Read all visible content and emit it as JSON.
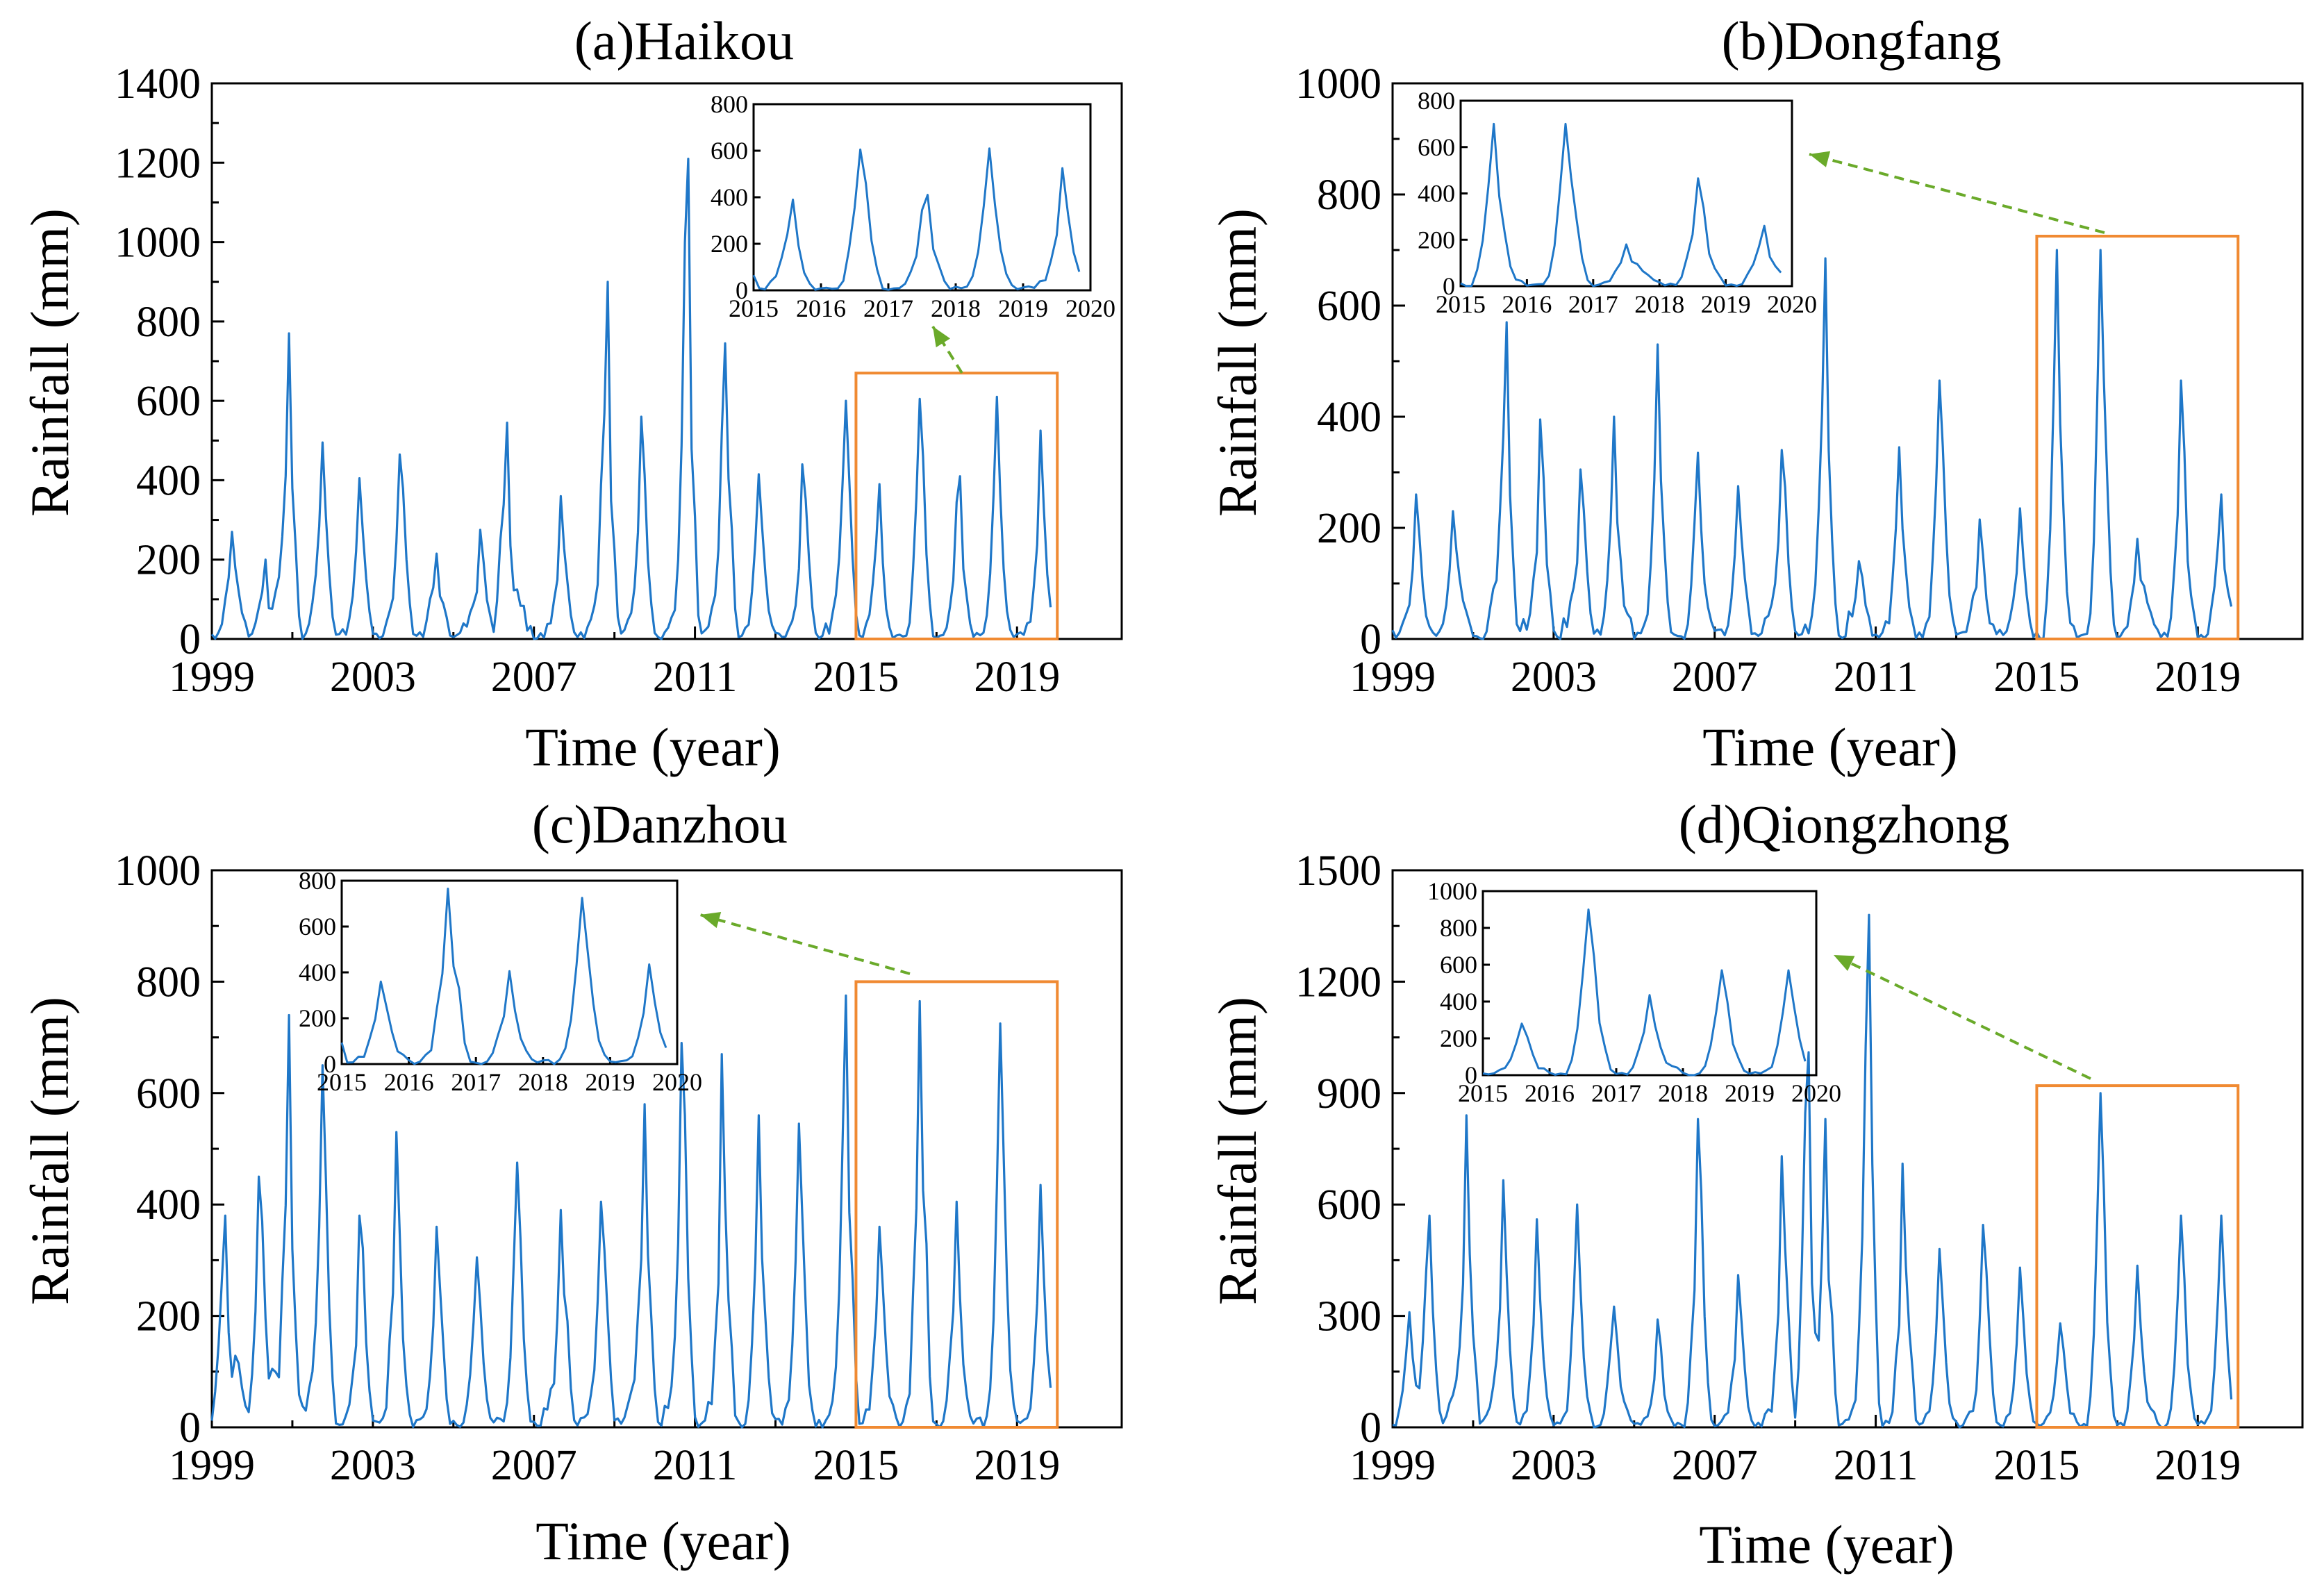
{
  "figure": {
    "colors": {
      "series": "#1f77c8",
      "highlight_box": "#f08a32",
      "arrow": "#6aaa2a"
    }
  },
  "chart_data": [
    {
      "type": "line",
      "panel": "a",
      "title": "(a)Haikou",
      "xlabel": "Time (year)",
      "ylabel": "Rainfall (mm)",
      "xlim": [
        1999,
        2021.6
      ],
      "ylim": [
        0,
        1400
      ],
      "xticks": [
        "1999",
        "2003",
        "2007",
        "2011",
        "2015",
        "2019"
      ],
      "yticks": [
        "0",
        "200",
        "400",
        "600",
        "800",
        "1000",
        "1200",
        "1400"
      ],
      "series": [
        {
          "name": "Monthly rainfall",
          "peaks": [
            [
              1999.5,
              270
            ],
            [
              2000.3,
              200
            ],
            [
              2000.8,
              315
            ],
            [
              2000.9,
              770
            ],
            [
              2001.75,
              495
            ],
            [
              2002.7,
              405
            ],
            [
              2003.7,
              465
            ],
            [
              2004.55,
              215
            ],
            [
              2005.7,
              275
            ],
            [
              2006.3,
              545
            ],
            [
              2007.7,
              360
            ],
            [
              2008.8,
              900
            ],
            [
              2009.7,
              560
            ],
            [
              2010.8,
              1210
            ],
            [
              2011.75,
              745
            ],
            [
              2012.6,
              415
            ],
            [
              2013.7,
              440
            ],
            [
              2014.75,
              600
            ],
            [
              2015.55,
              390
            ],
            [
              2016.6,
              605
            ],
            [
              2017.55,
              410
            ],
            [
              2018.5,
              610
            ],
            [
              2019.6,
              525
            ]
          ]
        }
      ],
      "highlight_range": {
        "x": [
          2015,
          2020
        ],
        "y": [
          0,
          670
        ]
      },
      "inset": {
        "xlim": [
          2015,
          2020
        ],
        "ylim": [
          0,
          800
        ],
        "xticks": [
          "2015",
          "2016",
          "2017",
          "2018",
          "2019",
          "2020"
        ],
        "yticks": [
          "0",
          "200",
          "400",
          "600",
          "800"
        ]
      }
    },
    {
      "type": "line",
      "panel": "b",
      "title": "(b)Dongfang",
      "xlabel": "Time (year)",
      "ylabel": "Rainfall (mm)",
      "xlim": [
        1999,
        2021.6
      ],
      "ylim": [
        0,
        1000
      ],
      "xticks": [
        "1999",
        "2003",
        "2007",
        "2011",
        "2015",
        "2019"
      ],
      "yticks": [
        "0",
        "200",
        "400",
        "600",
        "800",
        "1000"
      ],
      "series": [
        {
          "name": "Monthly rainfall",
          "peaks": [
            [
              1999.6,
              260
            ],
            [
              2000.5,
              230
            ],
            [
              2001.8,
              570
            ],
            [
              2002.7,
              395
            ],
            [
              2003.7,
              305
            ],
            [
              2004.5,
              400
            ],
            [
              2005.6,
              530
            ],
            [
              2006.6,
              335
            ],
            [
              2007.6,
              275
            ],
            [
              2008.7,
              340
            ],
            [
              2009.75,
              685
            ],
            [
              2010.6,
              140
            ],
            [
              2011.6,
              345
            ],
            [
              2012.6,
              465
            ],
            [
              2013.6,
              215
            ],
            [
              2014.6,
              235
            ],
            [
              2015.5,
              700
            ],
            [
              2016.6,
              700
            ],
            [
              2017.5,
              180
            ],
            [
              2018.6,
              465
            ],
            [
              2019.55,
              260
            ]
          ]
        }
      ],
      "highlight_range": {
        "x": [
          2015,
          2020
        ],
        "y": [
          0,
          725
        ]
      },
      "inset": {
        "xlim": [
          2015,
          2020
        ],
        "ylim": [
          0,
          800
        ],
        "xticks": [
          "2015",
          "2016",
          "2017",
          "2018",
          "2019",
          "2020"
        ],
        "yticks": [
          "0",
          "200",
          "400",
          "600",
          "800"
        ]
      }
    },
    {
      "type": "line",
      "panel": "c",
      "title": "(c)Danzhou",
      "xlabel": "Time (year)",
      "ylabel": "Rainfall (mm)",
      "xlim": [
        1999,
        2021.6
      ],
      "ylim": [
        0,
        1000
      ],
      "xticks": [
        "1999",
        "2003",
        "2007",
        "2011",
        "2015",
        "2019"
      ],
      "yticks": [
        "0",
        "200",
        "400",
        "600",
        "800",
        "1000"
      ],
      "series": [
        {
          "name": "Monthly rainfall",
          "peaks": [
            [
              1999.3,
              380
            ],
            [
              2000.2,
              450
            ],
            [
              2000.9,
              740
            ],
            [
              2001.75,
              650
            ],
            [
              2002.7,
              380
            ],
            [
              2003.6,
              530
            ],
            [
              2004.6,
              360
            ],
            [
              2005.6,
              305
            ],
            [
              2006.6,
              475
            ],
            [
              2007.7,
              390
            ],
            [
              2008.7,
              405
            ],
            [
              2009.75,
              580
            ],
            [
              2010.7,
              690
            ],
            [
              2011.7,
              670
            ],
            [
              2012.6,
              560
            ],
            [
              2013.6,
              545
            ],
            [
              2014.75,
              775
            ],
            [
              2015.6,
              360
            ],
            [
              2016.6,
              765
            ],
            [
              2017.5,
              405
            ],
            [
              2018.6,
              725
            ],
            [
              2019.6,
              435
            ]
          ]
        }
      ],
      "highlight_range": {
        "x": [
          2015,
          2020
        ],
        "y": [
          0,
          800
        ]
      },
      "inset": {
        "xlim": [
          2015,
          2020
        ],
        "ylim": [
          0,
          800
        ],
        "xticks": [
          "2015",
          "2016",
          "2017",
          "2018",
          "2019",
          "2020"
        ],
        "yticks": [
          "0",
          "200",
          "400",
          "600",
          "800"
        ]
      }
    },
    {
      "type": "line",
      "panel": "d",
      "title": "(d)Qiongzhong",
      "xlabel": "Time (year)",
      "ylabel": "Rainfall (mm)",
      "xlim": [
        1999,
        2021.6
      ],
      "ylim": [
        0,
        1500
      ],
      "xticks": [
        "1999",
        "2003",
        "2007",
        "2011",
        "2015",
        "2019"
      ],
      "yticks": [
        "0",
        "300",
        "600",
        "900",
        "1200",
        "1500"
      ],
      "series": [
        {
          "name": "Monthly rainfall",
          "peaks": [
            [
              1999.4,
              310
            ],
            [
              1999.9,
              570
            ],
            [
              2000.85,
              840
            ],
            [
              2001.75,
              665
            ],
            [
              2002.6,
              560
            ],
            [
              2003.6,
              600
            ],
            [
              2004.5,
              325
            ],
            [
              2005.6,
              290
            ],
            [
              2006.6,
              830
            ],
            [
              2007.6,
              410
            ],
            [
              2008.7,
              730
            ],
            [
              2009.3,
              1010
            ],
            [
              2009.75,
              830
            ],
            [
              2010.8,
              1380
            ],
            [
              2011.7,
              710
            ],
            [
              2012.6,
              480
            ],
            [
              2013.7,
              545
            ],
            [
              2014.6,
              430
            ],
            [
              2015.6,
              280
            ],
            [
              2016.6,
              900
            ],
            [
              2017.5,
              435
            ],
            [
              2018.6,
              570
            ],
            [
              2019.6,
              570
            ]
          ]
        }
      ],
      "highlight_range": {
        "x": [
          2015,
          2020
        ],
        "y": [
          0,
          920
        ]
      },
      "inset": {
        "xlim": [
          2015,
          2020
        ],
        "ylim": [
          0,
          1000
        ],
        "xticks": [
          "2015",
          "2016",
          "2017",
          "2018",
          "2019",
          "2020"
        ],
        "yticks": [
          "0",
          "200",
          "400",
          "600",
          "800",
          "1000"
        ]
      }
    }
  ]
}
